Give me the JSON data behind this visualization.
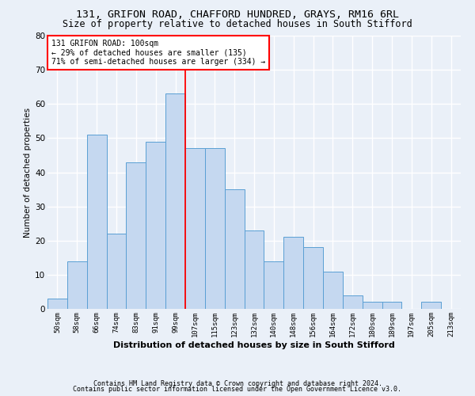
{
  "title1": "131, GRIFON ROAD, CHAFFORD HUNDRED, GRAYS, RM16 6RL",
  "title2": "Size of property relative to detached houses in South Stifford",
  "xlabel": "Distribution of detached houses by size in South Stifford",
  "ylabel": "Number of detached properties",
  "footnote1": "Contains HM Land Registry data © Crown copyright and database right 2024.",
  "footnote2": "Contains public sector information licensed under the Open Government Licence v3.0.",
  "bin_labels": [
    "50sqm",
    "58sqm",
    "66sqm",
    "74sqm",
    "83sqm",
    "91sqm",
    "99sqm",
    "107sqm",
    "115sqm",
    "123sqm",
    "132sqm",
    "140sqm",
    "148sqm",
    "156sqm",
    "164sqm",
    "172sqm",
    "180sqm",
    "189sqm",
    "197sqm",
    "205sqm",
    "213sqm"
  ],
  "bar_values": [
    3,
    14,
    51,
    22,
    43,
    49,
    63,
    47,
    47,
    35,
    23,
    14,
    21,
    18,
    11,
    4,
    2,
    2,
    0,
    2,
    0
  ],
  "bar_color": "#c5d8f0",
  "bar_edge_color": "#5a9fd4",
  "annotation_box_color": "white",
  "annotation_box_edge_color": "red",
  "annotation_line_color": "red",
  "ylim": [
    0,
    80
  ],
  "yticks": [
    0,
    10,
    20,
    30,
    40,
    50,
    60,
    70,
    80
  ],
  "bg_color": "#eaf0f8",
  "plot_bg_color": "#eaf0f8",
  "grid_color": "white",
  "title1_fontsize": 9.5,
  "title2_fontsize": 8.5,
  "xlabel_fontsize": 8,
  "ylabel_fontsize": 7.5,
  "bar_linewidth": 0.7,
  "footnote_fontsize": 6,
  "annot_fontsize": 7,
  "xtick_fontsize": 6.5,
  "ytick_fontsize": 7.5
}
